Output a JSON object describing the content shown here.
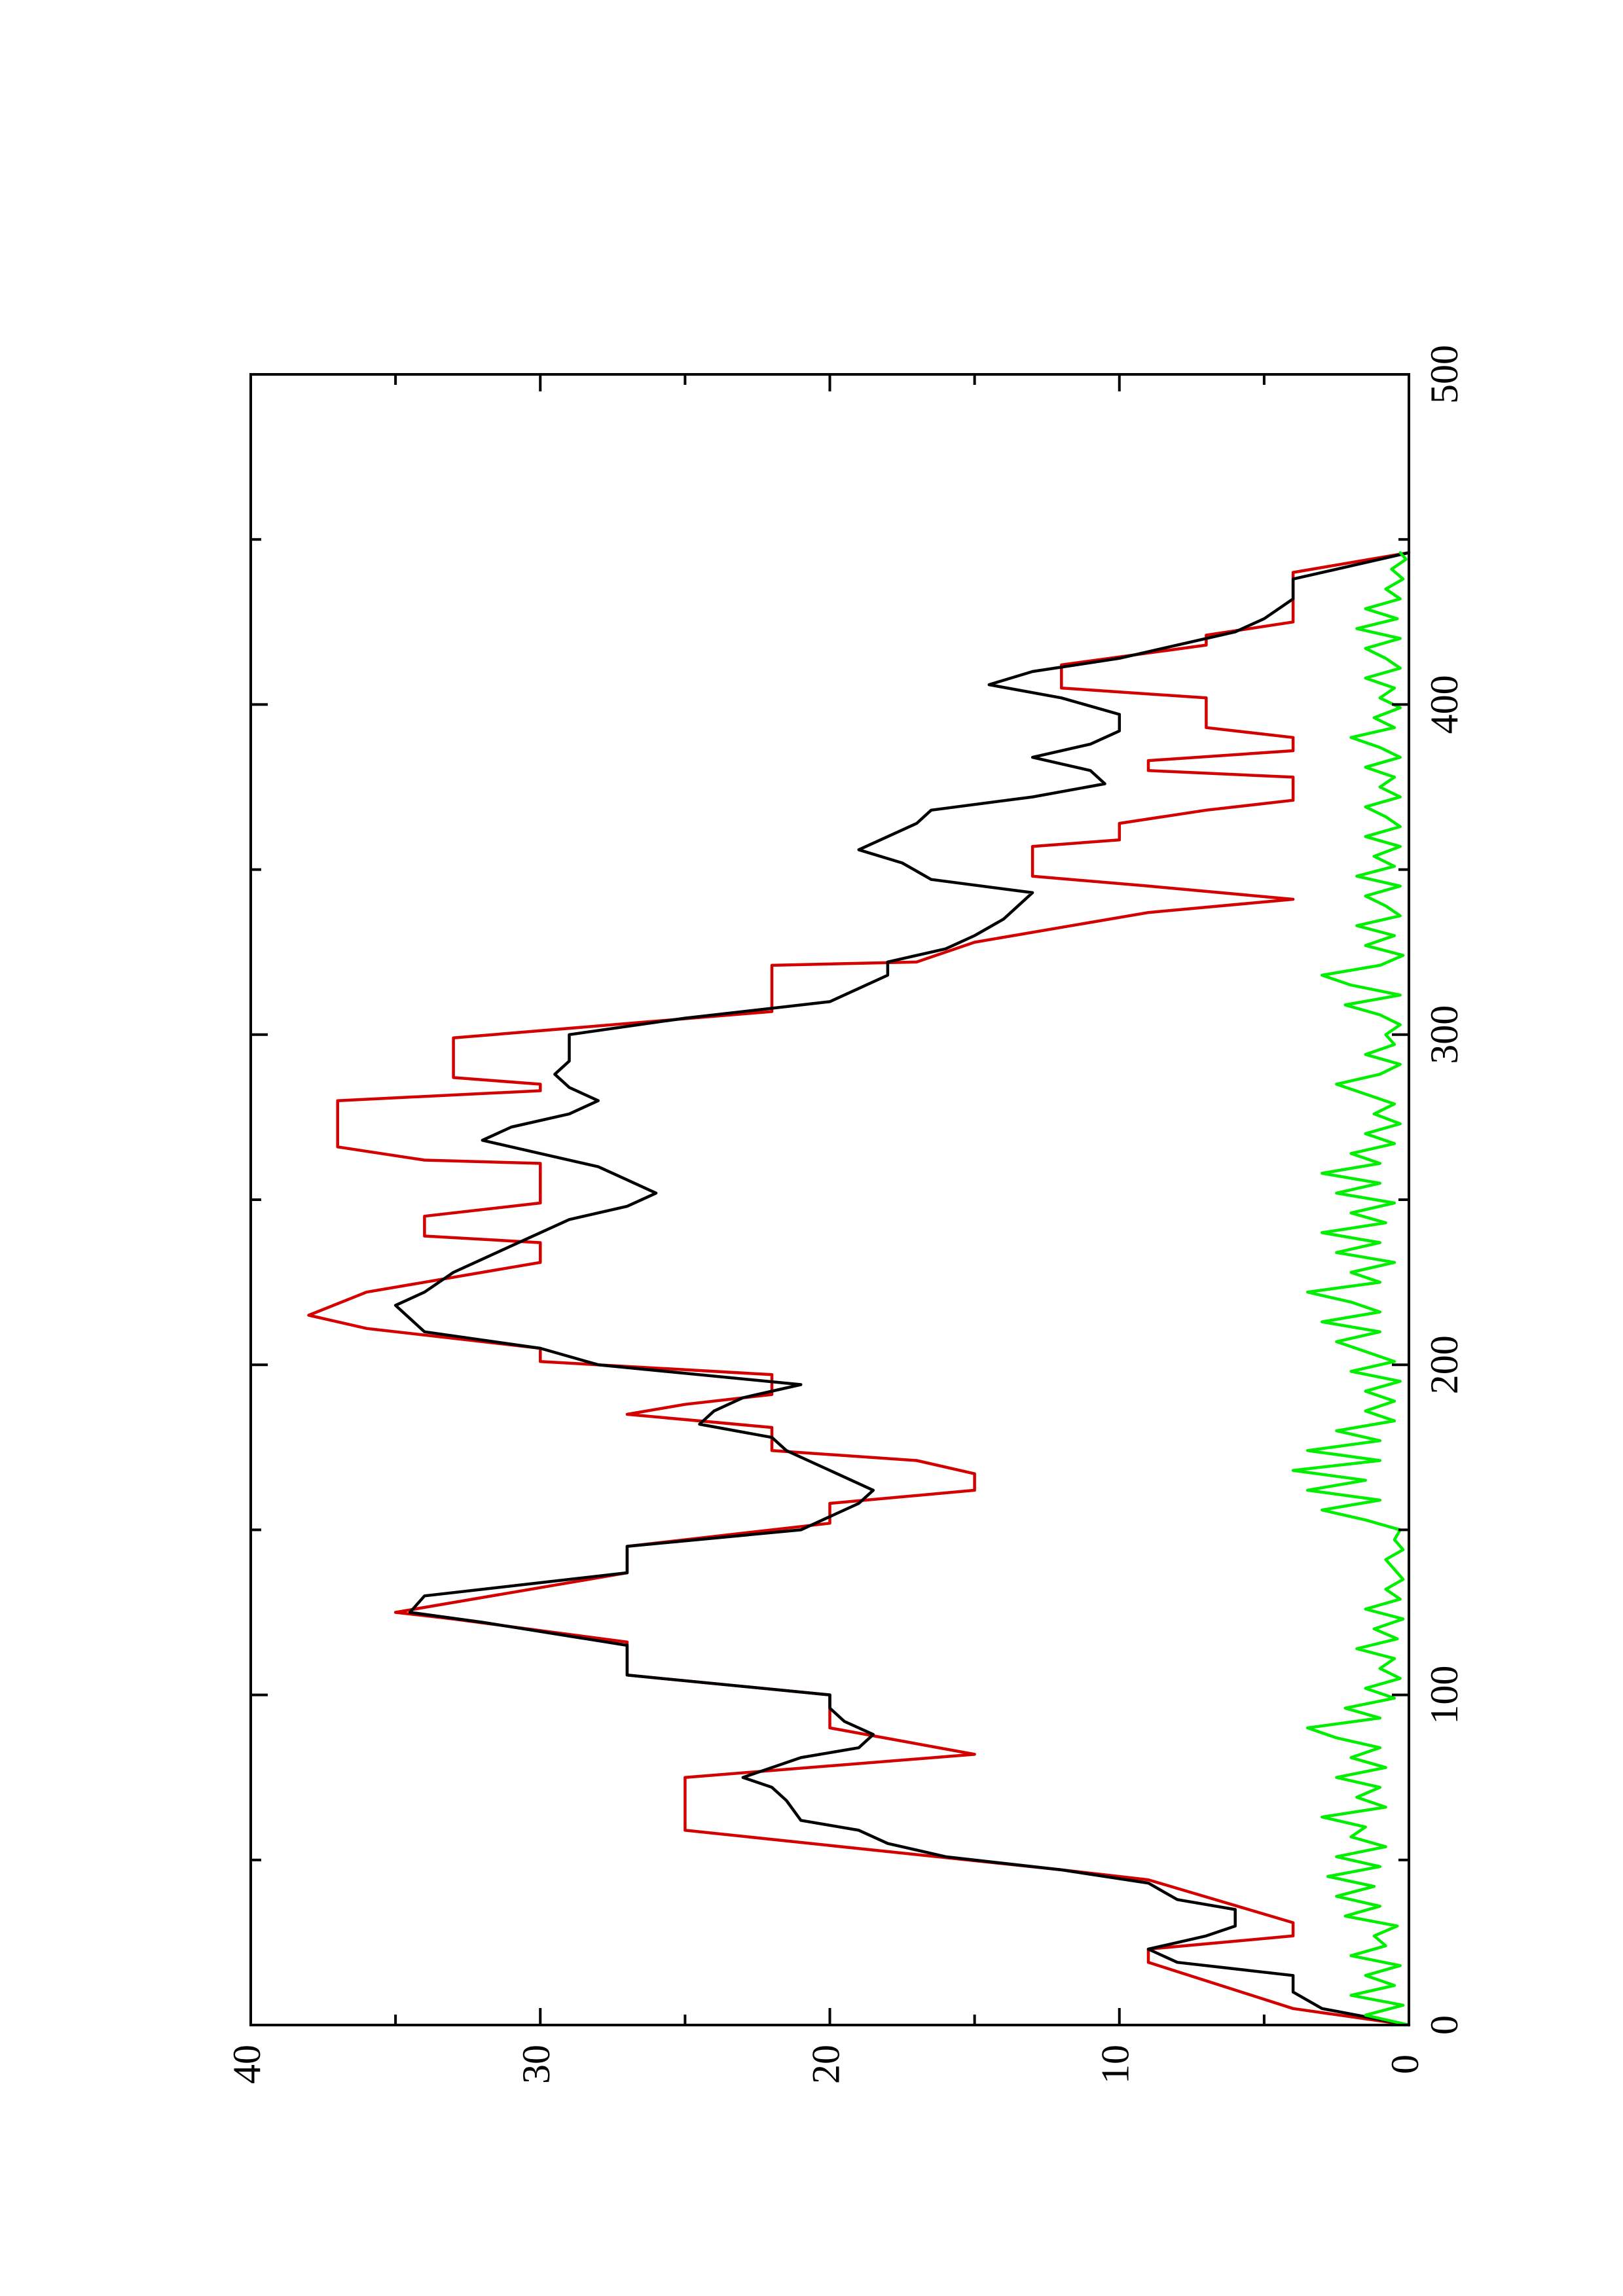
{
  "chart_data": {
    "type": "line",
    "orientation": "rotated-90-counterclockwise",
    "title": "",
    "xlabel": "",
    "ylabel": "",
    "xlim": [
      0,
      500
    ],
    "ylim": [
      0,
      40
    ],
    "x_ticks": [
      "0",
      "100",
      "200",
      "300",
      "400",
      "500"
    ],
    "y_ticks": [
      "0",
      "10",
      "20",
      "30",
      "40"
    ],
    "grid": false,
    "legend": "none",
    "series": [
      {
        "color": "#d40000",
        "style": "step",
        "points": [
          [
            0,
            0
          ],
          [
            5,
            4
          ],
          [
            19,
            9
          ],
          [
            23,
            9
          ],
          [
            27,
            4
          ],
          [
            31,
            4
          ],
          [
            44,
            9
          ],
          [
            47,
            12
          ],
          [
            59,
            25
          ],
          [
            75,
            25
          ],
          [
            82,
            15
          ],
          [
            90,
            20
          ],
          [
            100,
            20
          ],
          [
            106,
            27
          ],
          [
            116,
            27
          ],
          [
            123,
            33
          ],
          [
            125,
            35
          ],
          [
            137,
            27
          ],
          [
            145,
            27
          ],
          [
            152,
            20
          ],
          [
            158,
            20
          ],
          [
            162,
            15
          ],
          [
            167,
            15
          ],
          [
            171,
            17
          ],
          [
            174,
            22
          ],
          [
            181,
            22
          ],
          [
            185,
            27
          ],
          [
            188,
            25
          ],
          [
            191,
            22
          ],
          [
            197,
            22
          ],
          [
            201,
            30
          ],
          [
            205,
            30
          ],
          [
            211,
            36
          ],
          [
            215,
            38
          ],
          [
            222,
            36
          ],
          [
            231,
            30
          ],
          [
            237,
            30
          ],
          [
            239,
            34
          ],
          [
            245,
            34
          ],
          [
            249,
            30
          ],
          [
            261,
            30
          ],
          [
            262,
            34
          ],
          [
            266,
            37
          ],
          [
            280,
            37
          ],
          [
            283,
            30
          ],
          [
            285,
            30
          ],
          [
            287,
            33
          ],
          [
            299,
            33
          ],
          [
            307,
            22
          ],
          [
            321,
            22
          ],
          [
            322,
            17
          ],
          [
            328,
            15
          ],
          [
            337,
            9
          ],
          [
            341,
            4
          ],
          [
            345,
            9
          ],
          [
            348,
            13
          ],
          [
            357,
            13
          ],
          [
            359,
            10
          ],
          [
            364,
            10
          ],
          [
            368,
            7
          ],
          [
            371,
            4
          ],
          [
            378,
            4
          ],
          [
            380,
            9
          ],
          [
            383,
            9
          ],
          [
            386,
            4
          ],
          [
            390,
            4
          ],
          [
            393,
            7
          ],
          [
            402,
            7
          ],
          [
            405,
            12
          ],
          [
            412,
            12
          ],
          [
            418,
            7
          ],
          [
            421,
            7
          ],
          [
            425,
            4
          ],
          [
            440,
            4
          ],
          [
            446,
            0
          ]
        ]
      },
      {
        "color": "#000000",
        "style": "line",
        "points": [
          [
            0,
            0
          ],
          [
            5,
            3
          ],
          [
            10,
            4
          ],
          [
            15,
            4
          ],
          [
            19,
            8
          ],
          [
            23,
            9
          ],
          [
            27,
            7
          ],
          [
            30,
            6
          ],
          [
            35,
            6
          ],
          [
            38,
            8
          ],
          [
            43,
            9
          ],
          [
            47,
            12
          ],
          [
            51,
            16
          ],
          [
            55,
            18
          ],
          [
            59,
            19
          ],
          [
            62,
            21
          ],
          [
            68,
            21.5
          ],
          [
            72,
            22
          ],
          [
            75,
            23
          ],
          [
            78,
            22
          ],
          [
            81,
            21
          ],
          [
            84,
            19
          ],
          [
            88,
            18.5
          ],
          [
            92,
            19.5
          ],
          [
            96,
            20
          ],
          [
            100,
            20
          ],
          [
            106,
            27
          ],
          [
            115,
            27
          ],
          [
            122,
            32
          ],
          [
            125,
            34.5
          ],
          [
            130,
            34
          ],
          [
            137,
            27
          ],
          [
            145,
            27
          ],
          [
            150,
            21
          ],
          [
            154,
            20
          ],
          [
            158,
            19
          ],
          [
            162,
            18.5
          ],
          [
            166,
            19.5
          ],
          [
            170,
            20.5
          ],
          [
            174,
            21.5
          ],
          [
            178,
            22
          ],
          [
            182,
            24.5
          ],
          [
            186,
            24
          ],
          [
            190,
            23
          ],
          [
            194,
            21
          ],
          [
            200,
            28
          ],
          [
            205,
            30
          ],
          [
            210,
            34
          ],
          [
            214,
            34.5
          ],
          [
            218,
            35
          ],
          [
            222,
            34
          ],
          [
            228,
            33
          ],
          [
            232,
            32
          ],
          [
            236,
            31
          ],
          [
            240,
            30
          ],
          [
            244,
            29
          ],
          [
            248,
            27
          ],
          [
            252,
            26
          ],
          [
            256,
            27
          ],
          [
            260,
            28
          ],
          [
            264,
            30
          ],
          [
            268,
            32
          ],
          [
            272,
            31
          ],
          [
            276,
            29
          ],
          [
            280,
            28
          ],
          [
            284,
            29
          ],
          [
            288,
            29.5
          ],
          [
            292,
            29
          ],
          [
            296,
            29
          ],
          [
            300,
            29
          ],
          [
            305,
            25
          ],
          [
            310,
            20
          ],
          [
            314,
            19
          ],
          [
            318,
            18
          ],
          [
            322,
            18
          ],
          [
            326,
            16
          ],
          [
            330,
            15
          ],
          [
            335,
            14
          ],
          [
            339,
            13.5
          ],
          [
            343,
            13
          ],
          [
            347,
            16.5
          ],
          [
            352,
            17.5
          ],
          [
            356,
            19
          ],
          [
            360,
            18
          ],
          [
            364,
            17
          ],
          [
            368,
            16.5
          ],
          [
            372,
            13
          ],
          [
            376,
            10.5
          ],
          [
            380,
            11
          ],
          [
            384,
            13
          ],
          [
            388,
            11
          ],
          [
            392,
            10
          ],
          [
            397,
            10
          ],
          [
            402,
            12
          ],
          [
            406,
            14.5
          ],
          [
            410,
            13
          ],
          [
            414,
            10
          ],
          [
            418,
            8
          ],
          [
            422,
            6
          ],
          [
            426,
            5
          ],
          [
            432,
            4
          ],
          [
            438,
            4
          ],
          [
            442,
            2
          ],
          [
            446,
            0
          ]
        ]
      },
      {
        "color": "#00ee00",
        "style": "noisy",
        "points": [
          [
            0,
            0
          ],
          [
            3,
            1.5
          ],
          [
            6,
            0.2
          ],
          [
            9,
            2
          ],
          [
            12,
            0.5
          ],
          [
            15,
            1.5
          ],
          [
            18,
            0.3
          ],
          [
            21,
            2
          ],
          [
            24,
            0.8
          ],
          [
            27,
            1.2
          ],
          [
            30,
            0.4
          ],
          [
            33,
            2.2
          ],
          [
            36,
            1
          ],
          [
            39,
            2.5
          ],
          [
            42,
            1.2
          ],
          [
            45,
            2.8
          ],
          [
            48,
            1
          ],
          [
            51,
            2.5
          ],
          [
            54,
            0.8
          ],
          [
            57,
            2
          ],
          [
            60,
            1.5
          ],
          [
            63,
            3
          ],
          [
            66,
            0.8
          ],
          [
            69,
            1.8
          ],
          [
            72,
            1
          ],
          [
            75,
            2.5
          ],
          [
            78,
            0.8
          ],
          [
            81,
            2
          ],
          [
            84,
            1
          ],
          [
            87,
            2.5
          ],
          [
            90,
            3.5
          ],
          [
            93,
            1
          ],
          [
            96,
            2.2
          ],
          [
            99,
            0.5
          ],
          [
            102,
            1.5
          ],
          [
            105,
            0.3
          ],
          [
            108,
            1
          ],
          [
            111,
            0.5
          ],
          [
            114,
            1.8
          ],
          [
            117,
            0.4
          ],
          [
            120,
            1.2
          ],
          [
            123,
            0.2
          ],
          [
            126,
            1.5
          ],
          [
            129,
            0.3
          ],
          [
            132,
            0.8
          ],
          [
            135,
            0.2
          ],
          [
            138,
            0.5
          ],
          [
            141,
            0.8
          ],
          [
            144,
            0.2
          ],
          [
            147,
            0.5
          ],
          [
            150,
            0.3
          ],
          [
            153,
            1.5
          ],
          [
            156,
            3
          ],
          [
            159,
            1
          ],
          [
            162,
            3.5
          ],
          [
            165,
            1.5
          ],
          [
            168,
            4
          ],
          [
            171,
            1
          ],
          [
            174,
            3.5
          ],
          [
            177,
            1
          ],
          [
            180,
            2.5
          ],
          [
            183,
            0.5
          ],
          [
            186,
            1.5
          ],
          [
            189,
            0.5
          ],
          [
            192,
            1.5
          ],
          [
            195,
            0.3
          ],
          [
            198,
            2
          ],
          [
            201,
            0.5
          ],
          [
            204,
            1.5
          ],
          [
            207,
            2.5
          ],
          [
            210,
            1
          ],
          [
            213,
            3
          ],
          [
            216,
            1
          ],
          [
            219,
            2
          ],
          [
            222,
            3.5
          ],
          [
            225,
            1
          ],
          [
            228,
            2
          ],
          [
            231,
            0.5
          ],
          [
            234,
            2.5
          ],
          [
            237,
            1
          ],
          [
            240,
            3
          ],
          [
            243,
            0.8
          ],
          [
            246,
            2
          ],
          [
            249,
            0.5
          ],
          [
            252,
            2.5
          ],
          [
            255,
            1
          ],
          [
            258,
            3
          ],
          [
            261,
            1
          ],
          [
            264,
            2
          ],
          [
            267,
            0.5
          ],
          [
            270,
            1.5
          ],
          [
            273,
            0.3
          ],
          [
            276,
            1.2
          ],
          [
            279,
            0.5
          ],
          [
            282,
            1.5
          ],
          [
            285,
            2.5
          ],
          [
            288,
            1
          ],
          [
            291,
            0.3
          ],
          [
            294,
            1.5
          ],
          [
            297,
            0.5
          ],
          [
            300,
            0.8
          ],
          [
            303,
            0.3
          ],
          [
            306,
            1
          ],
          [
            309,
            2.2
          ],
          [
            312,
            0.3
          ],
          [
            315,
            2
          ],
          [
            318,
            3
          ],
          [
            321,
            1
          ],
          [
            324,
            0.2
          ],
          [
            327,
            1.5
          ],
          [
            330,
            0.5
          ],
          [
            333,
            1.8
          ],
          [
            336,
            0.3
          ],
          [
            339,
            0.8
          ],
          [
            342,
            1.5
          ],
          [
            345,
            0.3
          ],
          [
            348,
            1.8
          ],
          [
            351,
            0.5
          ],
          [
            354,
            1.2
          ],
          [
            357,
            0.3
          ],
          [
            360,
            1.5
          ],
          [
            363,
            0.3
          ],
          [
            366,
            0.8
          ],
          [
            369,
            1.5
          ],
          [
            372,
            0.3
          ],
          [
            375,
            1
          ],
          [
            378,
            0.5
          ],
          [
            381,
            1.5
          ],
          [
            384,
            0.3
          ],
          [
            387,
            1
          ],
          [
            390,
            2
          ],
          [
            393,
            0.5
          ],
          [
            396,
            1.2
          ],
          [
            399,
            0.3
          ],
          [
            402,
            1
          ],
          [
            405,
            0.5
          ],
          [
            408,
            1.5
          ],
          [
            411,
            0.3
          ],
          [
            414,
            0.8
          ],
          [
            417,
            1.5
          ],
          [
            420,
            0.3
          ],
          [
            423,
            1.8
          ],
          [
            426,
            0.4
          ],
          [
            429,
            1.5
          ],
          [
            432,
            0.3
          ],
          [
            435,
            0.8
          ],
          [
            438,
            0.2
          ],
          [
            441,
            0.6
          ],
          [
            444,
            0.1
          ],
          [
            446,
            0.3
          ]
        ]
      }
    ]
  }
}
